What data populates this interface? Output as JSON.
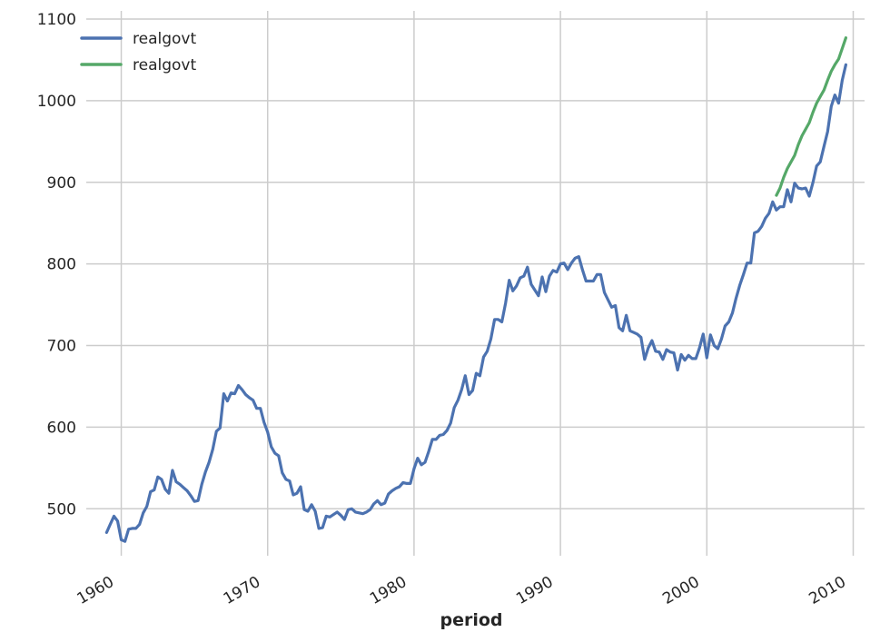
{
  "chart_data": {
    "type": "line",
    "xlabel": "period",
    "ylabel": "",
    "x_unit": "year",
    "xlim": [
      1957.3,
      2010.9
    ],
    "ylim": [
      428,
      1100
    ],
    "x_ticks": [
      1960,
      1970,
      1980,
      1990,
      2000,
      2010
    ],
    "x_tick_labels": [
      "1960",
      "1970",
      "1980",
      "1990",
      "2000",
      "2010"
    ],
    "y_ticks": [
      500,
      600,
      700,
      800,
      900,
      1000,
      1100
    ],
    "y_tick_labels": [
      "500",
      "600",
      "700",
      "800",
      "900",
      "1000",
      "1100"
    ],
    "grid": true,
    "legend_position": "top-left",
    "series": [
      {
        "name": "realgovt",
        "color": "#4c72b0",
        "x": [
          1959.0,
          1959.25,
          1959.5,
          1959.75,
          1960.0,
          1960.25,
          1960.5,
          1960.75,
          1961.0,
          1961.25,
          1961.5,
          1961.75,
          1962.0,
          1962.25,
          1962.5,
          1962.75,
          1963.0,
          1963.25,
          1963.5,
          1963.75,
          1964.0,
          1964.25,
          1964.5,
          1964.75,
          1965.0,
          1965.25,
          1965.5,
          1965.75,
          1966.0,
          1966.25,
          1966.5,
          1966.75,
          1967.0,
          1967.25,
          1967.5,
          1967.75,
          1968.0,
          1968.25,
          1968.5,
          1968.75,
          1969.0,
          1969.25,
          1969.5,
          1969.75,
          1970.0,
          1970.25,
          1970.5,
          1970.75,
          1971.0,
          1971.25,
          1971.5,
          1971.75,
          1972.0,
          1972.25,
          1972.5,
          1972.75,
          1973.0,
          1973.25,
          1973.5,
          1973.75,
          1974.0,
          1974.25,
          1974.5,
          1974.75,
          1975.0,
          1975.25,
          1975.5,
          1975.75,
          1976.0,
          1976.25,
          1976.5,
          1976.75,
          1977.0,
          1977.25,
          1977.5,
          1977.75,
          1978.0,
          1978.25,
          1978.5,
          1978.75,
          1979.0,
          1979.25,
          1979.5,
          1979.75,
          1980.0,
          1980.25,
          1980.5,
          1980.75,
          1981.0,
          1981.25,
          1981.5,
          1981.75,
          1982.0,
          1982.25,
          1982.5,
          1982.75,
          1983.0,
          1983.25,
          1983.5,
          1983.75,
          1984.0,
          1984.25,
          1984.5,
          1984.75,
          1985.0,
          1985.25,
          1985.5,
          1985.75,
          1986.0,
          1986.25,
          1986.5,
          1986.75,
          1987.0,
          1987.25,
          1987.5,
          1987.75,
          1988.0,
          1988.25,
          1988.5,
          1988.75,
          1989.0,
          1989.25,
          1989.5,
          1989.75,
          1990.0,
          1990.25,
          1990.5,
          1990.75,
          1991.0,
          1991.25,
          1991.5,
          1991.75,
          1992.0,
          1992.25,
          1992.5,
          1992.75,
          1993.0,
          1993.25,
          1993.5,
          1993.75,
          1994.0,
          1994.25,
          1994.5,
          1994.75,
          1995.0,
          1995.25,
          1995.5,
          1995.75,
          1996.0,
          1996.25,
          1996.5,
          1996.75,
          1997.0,
          1997.25,
          1997.5,
          1997.75,
          1998.0,
          1998.25,
          1998.5,
          1998.75,
          1999.0,
          1999.25,
          1999.5,
          1999.75,
          2000.0,
          2000.25,
          2000.5,
          2000.75,
          2001.0,
          2001.25,
          2001.5,
          2001.75,
          2002.0,
          2002.25,
          2002.5,
          2002.75,
          2003.0,
          2003.25,
          2003.5,
          2003.75,
          2004.0,
          2004.25,
          2004.5,
          2004.75,
          2005.0,
          2005.25,
          2005.5,
          2005.75,
          2006.0,
          2006.25,
          2006.5,
          2006.75,
          2007.0,
          2007.25,
          2007.5,
          2007.75,
          2008.0,
          2008.25,
          2008.5,
          2008.75,
          2009.0,
          2009.25,
          2009.5
        ],
        "values": [
          471,
          481,
          491,
          485,
          462,
          460,
          475,
          476,
          476,
          481,
          495,
          503,
          521,
          523,
          539,
          536,
          524,
          519,
          547,
          533,
          530,
          526,
          522,
          516,
          509,
          510,
          530,
          545,
          557,
          573,
          595,
          599,
          641,
          632,
          642,
          641,
          651,
          646,
          640,
          636,
          633,
          623,
          623,
          606,
          594,
          576,
          568,
          565,
          544,
          536,
          534,
          517,
          519,
          527,
          499,
          497,
          505,
          497,
          476,
          477,
          491,
          490,
          493,
          496,
          492,
          487,
          499,
          500,
          496,
          495,
          494,
          496,
          499,
          506,
          510,
          505,
          507,
          518,
          522,
          525,
          527,
          532,
          531,
          531,
          549,
          562,
          554,
          557,
          570,
          585,
          585,
          590,
          591,
          596,
          605,
          624,
          633,
          646,
          663,
          640,
          645,
          666,
          663,
          686,
          693,
          708,
          732,
          732,
          729,
          752,
          780,
          767,
          773,
          783,
          785,
          796,
          775,
          768,
          761,
          784,
          766,
          785,
          792,
          790,
          800,
          801,
          793,
          801,
          807,
          809,
          793,
          779,
          779,
          779,
          787,
          787,
          765,
          756,
          747,
          749,
          722,
          718,
          737,
          718,
          716,
          714,
          710,
          683,
          697,
          706,
          693,
          692,
          683,
          695,
          692,
          691,
          670,
          689,
          682,
          688,
          684,
          684,
          697,
          714,
          685,
          713,
          700,
          696,
          708,
          724,
          729,
          740,
          758,
          774,
          787,
          801,
          801,
          838,
          840,
          846,
          856,
          862,
          876,
          866,
          870,
          870,
          891,
          876,
          899,
          893,
          892,
          893,
          883,
          900,
          920,
          925,
          944,
          962,
          993,
          1007,
          997,
          1025,
          1044
        ]
      },
      {
        "name": "realgovt",
        "color": "#55a868",
        "x": [
          2004.75,
          2005.0,
          2005.25,
          2005.5,
          2005.75,
          2006.0,
          2006.25,
          2006.5,
          2006.75,
          2007.0,
          2007.25,
          2007.5,
          2007.75,
          2008.0,
          2008.25,
          2008.5,
          2008.75,
          2009.0,
          2009.25,
          2009.5
        ],
        "values": [
          884,
          893,
          906,
          917,
          925,
          933,
          946,
          957,
          965,
          973,
          986,
          997,
          1005,
          1013,
          1025,
          1036,
          1044,
          1051,
          1064,
          1077
        ]
      }
    ]
  }
}
